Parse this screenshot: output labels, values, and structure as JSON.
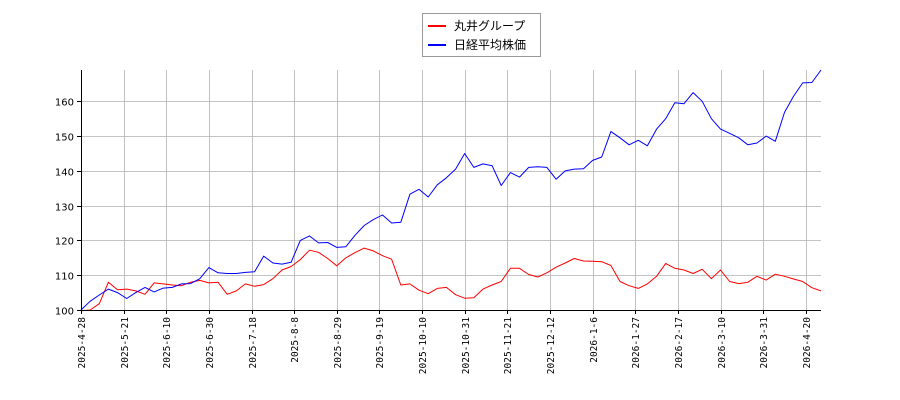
{
  "chart_data": {
    "type": "line",
    "title": "",
    "xlabel": "",
    "ylabel": "",
    "ylim": [
      100,
      169
    ],
    "yticks": [
      100,
      110,
      120,
      130,
      140,
      150,
      160
    ],
    "grid": true,
    "legend_placement": "top-center",
    "x_tick_labels": [
      "2025-4-28",
      "2025-5-21",
      "2025-6-10",
      "2025-6-30",
      "2025-7-18",
      "2025-8-8",
      "2025-8-29",
      "2025-9-19",
      "2025-10-10",
      "2025-10-31",
      "2025-11-21",
      "2025-12-12",
      "2026-1-6",
      "2026-1-27",
      "2026-2-17",
      "2026-3-10",
      "2026-3-31",
      "2026-4-20"
    ],
    "series": [
      {
        "name": "丸井グループ",
        "color": "#ff0000",
        "values": [
          99.8,
          100,
          101.8,
          108,
          105.8,
          106,
          105.5,
          104.5,
          107.8,
          107.5,
          107.2,
          107,
          108,
          108.5,
          107.8,
          108,
          104.5,
          105.5,
          107.5,
          106.8,
          107.3,
          109,
          111.5,
          112.5,
          114.5,
          117.2,
          116.6,
          114.8,
          112.7,
          115,
          116.5,
          117.8,
          117,
          115.6,
          114.6,
          107.2,
          107.5,
          105.7,
          104.7,
          106.2,
          106.5,
          104.4,
          103.4,
          103.5,
          106,
          107.2,
          108.2,
          112,
          112,
          110.2,
          109.5,
          110.7,
          112.3,
          113.5,
          114.8,
          114.1,
          114,
          113.9,
          112.8,
          108.2,
          107,
          106.2,
          107.5,
          109.7,
          113.4,
          112,
          111.5,
          110.5,
          111.7,
          109,
          111.5,
          108.2,
          107.6,
          108,
          109.7,
          108.6,
          110.3,
          109.7,
          108.9,
          108.2,
          106.4,
          105.5
        ]
      },
      {
        "name": "日経平均株価",
        "color": "#0000ff",
        "values": [
          100,
          102.5,
          104.3,
          106,
          105,
          103.3,
          105,
          106.5,
          105.2,
          106.3,
          106.5,
          107.5,
          107.6,
          109,
          112.2,
          110.7,
          110.5,
          110.5,
          110.8,
          111,
          115.5,
          113.5,
          113.2,
          113.7,
          120,
          121.3,
          119.3,
          119.4,
          118,
          118.2,
          121.5,
          124.3,
          126,
          127.3,
          125,
          125.2,
          133.3,
          134.7,
          132.5,
          136,
          138,
          140.5,
          145,
          141,
          142,
          141.5,
          135.8,
          139.5,
          138.2,
          141,
          141.2,
          141,
          137.6,
          140,
          140.5,
          140.6,
          143,
          144,
          151.3,
          149.5,
          147.5,
          148.8,
          147.2,
          152,
          155,
          159.6,
          159.3,
          162.5,
          160,
          155,
          152,
          150.8,
          149.5,
          147.5,
          148,
          150,
          148.5,
          156.8,
          161.5,
          165.3,
          165.4,
          169
        ]
      }
    ]
  }
}
